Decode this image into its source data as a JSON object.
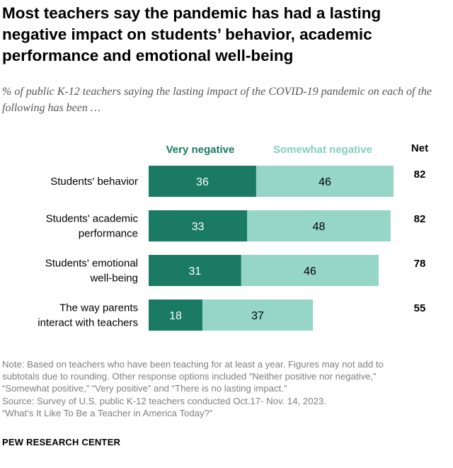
{
  "title": "Most teachers say the pandemic has had a lasting negative impact on students’ behavior, academic performance and emotional well-being",
  "subtitle": "% of public K-12 teachers saying the lasting impact of the COVID-19 pandemic on each of the following has been …",
  "colors": {
    "very_negative": "#1a7a64",
    "somewhat_negative": "#96d6c6",
    "very_negative_label": "#1a7a64",
    "somewhat_negative_label": "#83cfbb"
  },
  "chart_data": {
    "type": "bar",
    "orientation": "horizontal-stacked",
    "categories": [
      [
        "Students' behavior"
      ],
      [
        "Students' academic",
        "performance"
      ],
      [
        "Students' emotional",
        "well-being"
      ],
      [
        "The way parents",
        "interact with teachers"
      ]
    ],
    "series": [
      {
        "name": "Very negative",
        "values": [
          36,
          33,
          31,
          18
        ]
      },
      {
        "name": "Somewhat negative",
        "values": [
          46,
          48,
          46,
          37
        ]
      }
    ],
    "net_label": "Net",
    "net": [
      82,
      82,
      78,
      55
    ],
    "xlim": [
      0,
      82
    ]
  },
  "notes": [
    "Note: Based on teachers who have been teaching for at least a year. Figures may not add to",
    "subtotals due to rounding. Other response options included “Neither positive nor negative,”",
    "“Somewhat positive,” “Very positive” and “There is no lasting impact.”",
    "Source: Survey of U.S. public K-12 teachers conducted Oct.17- Nov. 14, 2023.",
    "“What’s It Like To Be a Teacher in America Today?”"
  ],
  "brand": "PEW RESEARCH CENTER"
}
